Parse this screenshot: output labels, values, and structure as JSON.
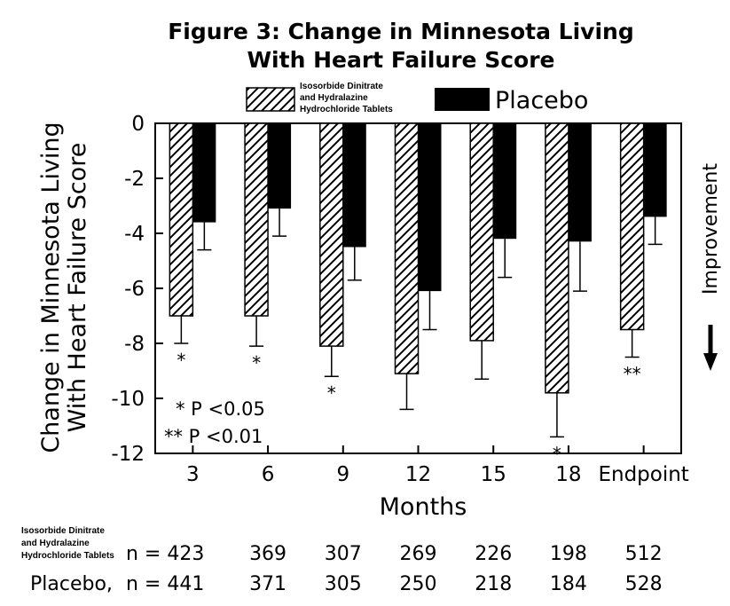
{
  "chart_data": {
    "type": "bar",
    "title": [
      "Figure 3: Change in Minnesota Living",
      "With Heart Failure Score"
    ],
    "ylabel": [
      "Change in Minnesota Living",
      "With Heart Failure Score"
    ],
    "xlabel": "Months",
    "ylim": [
      -12,
      0
    ],
    "yticks": [
      "0",
      "-2",
      "-4",
      "-6",
      "-8",
      "-10",
      "-12"
    ],
    "categories": [
      "3",
      "6",
      "9",
      "12",
      "15",
      "18",
      "Endpoint"
    ],
    "series": [
      {
        "name": [
          "Isosorbide Dinitrate",
          "and Hydralazine",
          "Hydrochloride Tablets"
        ],
        "pattern": "hatched",
        "values": [
          -7.0,
          -7.0,
          -8.1,
          -9.1,
          -7.9,
          -9.8,
          -7.5
        ],
        "errors": [
          1.0,
          1.1,
          1.1,
          1.3,
          1.4,
          1.6,
          1.0
        ],
        "significance": [
          "*",
          "*",
          "*",
          "",
          "",
          "*",
          "**"
        ]
      },
      {
        "name": "Placebo",
        "color": "#000000",
        "values": [
          -3.6,
          -3.1,
          -4.5,
          -6.1,
          -4.2,
          -4.3,
          -3.4
        ],
        "errors": [
          1.0,
          1.0,
          1.2,
          1.4,
          1.4,
          1.8,
          1.0
        ]
      }
    ],
    "significance_legend": [
      "* P <0.05",
      "** P <0.01"
    ],
    "side_annotation": "Improvement",
    "grid": false,
    "legend_position": "top"
  },
  "n_table": {
    "rows": [
      {
        "label": [
          "Isosorbide Dinitrate",
          "and Hydralazine",
          "Hydrochloride Tablets"
        ],
        "prefix": "n = 423",
        "values": [
          "369",
          "307",
          "269",
          "226",
          "198",
          "512"
        ]
      },
      {
        "label": "Placebo,",
        "prefix": "n = 441",
        "values": [
          "371",
          "305",
          "250",
          "218",
          "184",
          "528"
        ]
      }
    ]
  }
}
